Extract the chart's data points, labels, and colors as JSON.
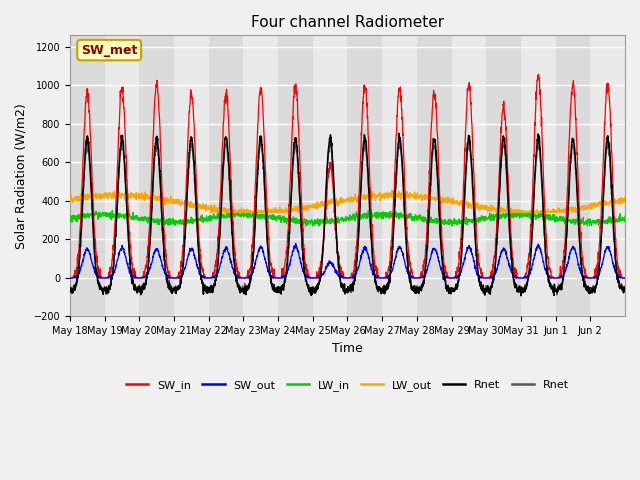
{
  "title": "Four channel Radiometer",
  "xlabel": "Time",
  "ylabel": "Solar Radiation (W/m2)",
  "ylim": [
    -200,
    1260
  ],
  "yticks": [
    -200,
    0,
    200,
    400,
    600,
    800,
    1000,
    1200
  ],
  "annotation": "SW_met",
  "annotation_color": "#8B0000",
  "annotation_bg": "#FFFFC0",
  "annotation_border": "#C8A000",
  "legend_entries": [
    "SW_in",
    "SW_out",
    "LW_in",
    "LW_out",
    "Rnet",
    "Rnet"
  ],
  "legend_colors": [
    "#FF0000",
    "#0000FF",
    "#00CC00",
    "#FFA500",
    "#000000",
    "#555555"
  ],
  "num_days": 16,
  "x_labels": [
    "May 18",
    "May 19",
    "May 20",
    "May 21",
    "May 22",
    "May 23",
    "May 24",
    "May 25",
    "May 26",
    "May 27",
    "May 28",
    "May 29",
    "May 30",
    "May 31",
    "Jun 1",
    "Jun 2"
  ],
  "SW_in_peaks": [
    960,
    980,
    1005,
    960,
    960,
    985,
    1000,
    580,
    995,
    985,
    960,
    1000,
    890,
    1050,
    1010,
    1000
  ],
  "SW_out_peaks": [
    150,
    155,
    150,
    150,
    155,
    160,
    165,
    80,
    155,
    160,
    155,
    160,
    150,
    165,
    160,
    160
  ],
  "LW_in_base": 310,
  "LW_in_variation": 20,
  "LW_out_base": 385,
  "LW_out_variation": 45,
  "Rnet_day_peak": 730,
  "Rnet_night_min": -90
}
